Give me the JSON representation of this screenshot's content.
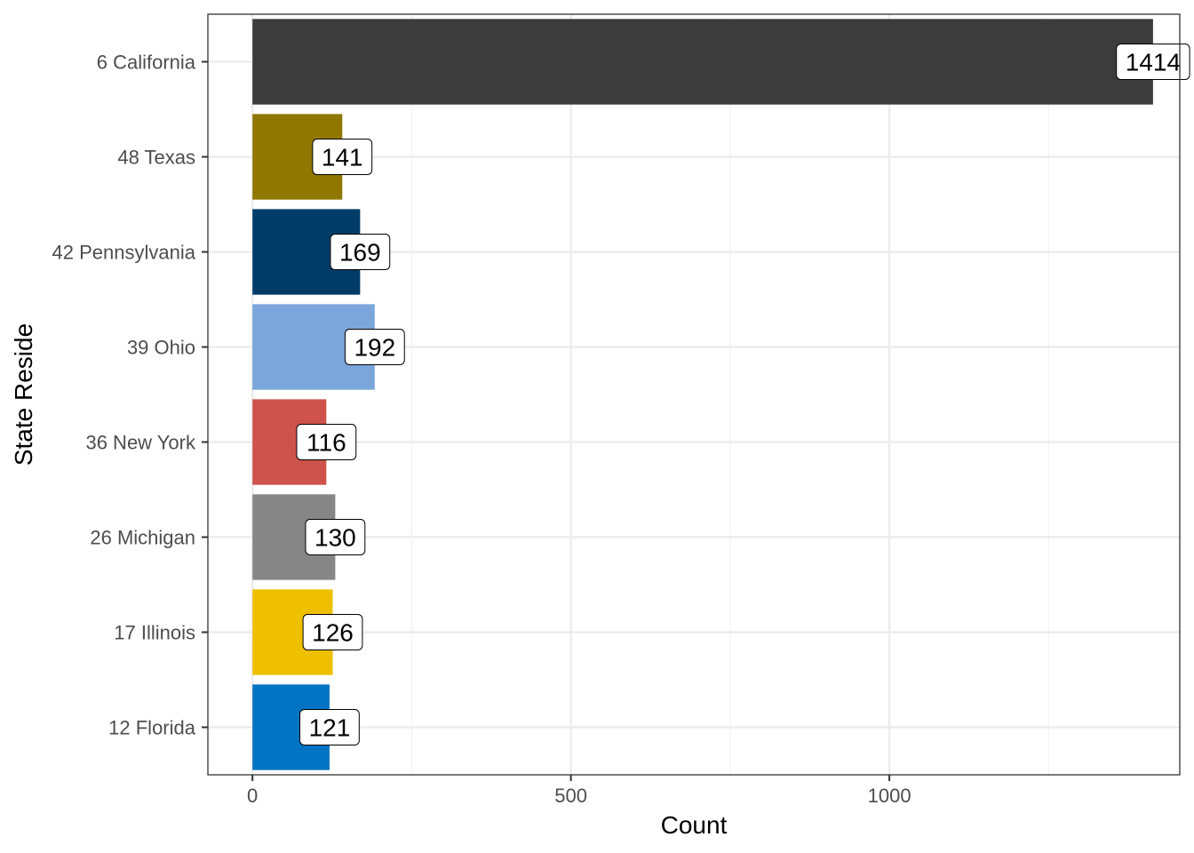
{
  "chart_data": {
    "type": "bar",
    "orientation": "horizontal",
    "categories": [
      "6 California",
      "48 Texas",
      "42 Pennsylvania",
      "39 Ohio",
      "36 New York",
      "26 Michigan",
      "17 Illinois",
      "12 Florida"
    ],
    "values": [
      1414,
      141,
      169,
      192,
      116,
      130,
      126,
      121
    ],
    "colors": [
      "#3c3c3c",
      "#8f7700",
      "#003c67",
      "#7aa6dc",
      "#cd534c",
      "#868686",
      "#efc000",
      "#0073c2"
    ],
    "data_labels": [
      "1414",
      "141",
      "169",
      "192",
      "116",
      "130",
      "126",
      "121"
    ],
    "title": "",
    "xlabel": "Count",
    "ylabel": "State Reside",
    "xlim": [
      -70,
      1456
    ],
    "x_ticks": [
      0,
      500,
      1000
    ],
    "x_tick_labels": [
      "0",
      "500",
      "1000"
    ],
    "grid": true,
    "legend": "none"
  }
}
